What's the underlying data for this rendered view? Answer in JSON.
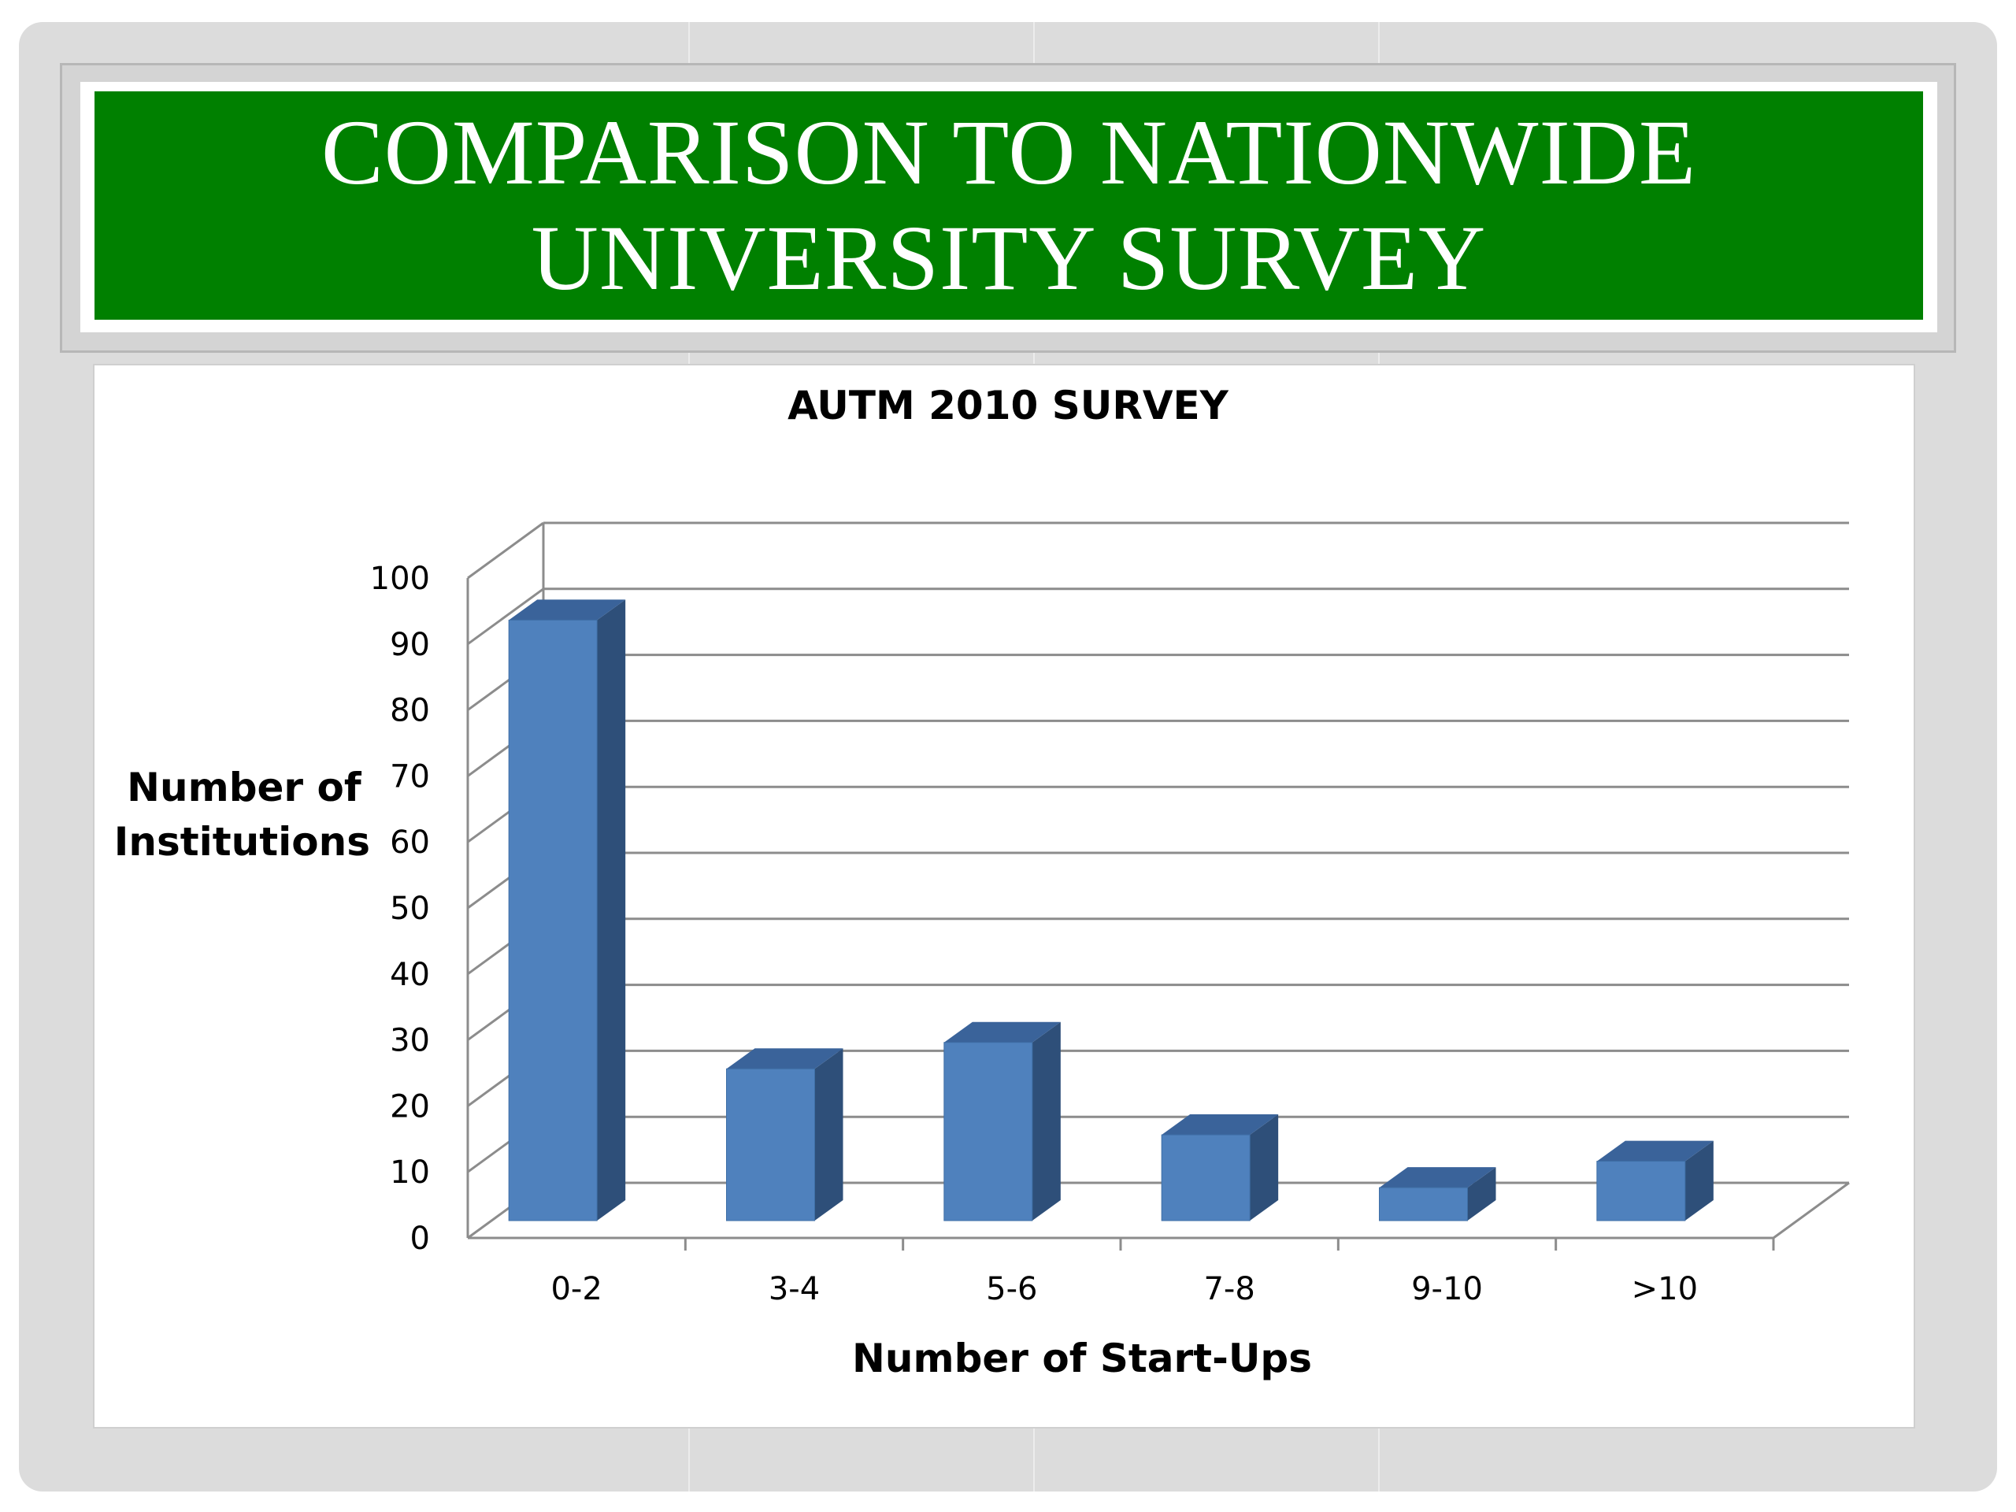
{
  "slide": {
    "title_line1": "Comparison to nationwide",
    "title_line2": "university survey"
  },
  "colors": {
    "banner": "#008000",
    "bar_front": "#4f81bd",
    "bar_side": "#2e4f79",
    "bar_top": "#3a639a"
  },
  "chart_data": {
    "type": "bar",
    "title": "AUTM 2010 SURVEY",
    "xlabel": "Number of Start-Ups",
    "ylabel": "Number of Institutions",
    "ylabel_lines": [
      "Number of",
      "Institutions"
    ],
    "categories": [
      "0-2",
      "3-4",
      "5-6",
      "7-8",
      "9-10",
      ">10"
    ],
    "values": [
      91,
      23,
      27,
      13,
      5,
      9
    ],
    "ylim": [
      0,
      100
    ],
    "yticks": [
      0,
      10,
      20,
      30,
      40,
      50,
      60,
      70,
      80,
      90,
      100
    ],
    "style": "3d-column",
    "grid": true,
    "legend": "none"
  }
}
